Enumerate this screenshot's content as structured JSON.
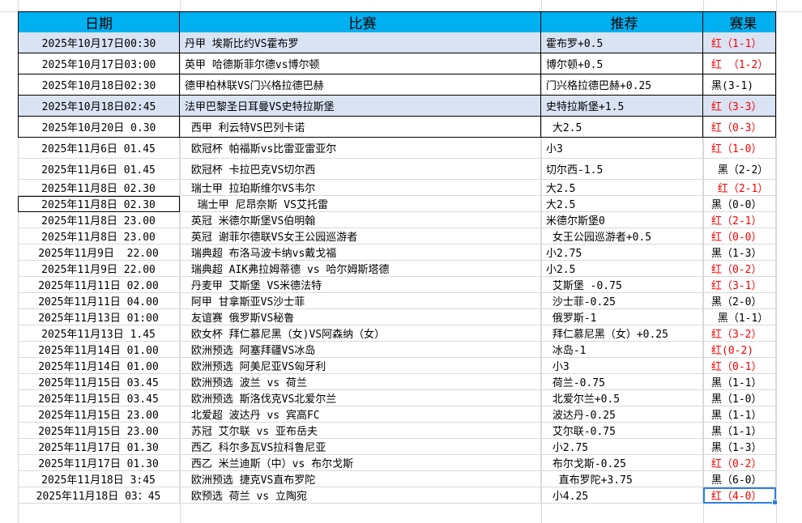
{
  "header": {
    "date": "日期",
    "match": "比赛",
    "pick": "推荐",
    "result": "赛果"
  },
  "colors": {
    "header_bg": "#00b0f0",
    "shaded_row": "#dae3f3",
    "win_text": "#ff0000"
  },
  "rows": [
    {
      "date": "2025年10月17日00:30",
      "match": "丹甲 埃斯比约VS霍布罗",
      "pick": "霍布罗+0.5",
      "result": "红（1-1）",
      "win": true,
      "shaded": true
    },
    {
      "date": "2025年10月17日03:00",
      "match": "英甲 哈德斯菲尔德vs博尔顿",
      "pick": "博尔顿+0.5",
      "result": "红 （1-2）",
      "win": true
    },
    {
      "date": "2025年10月18日02:30",
      "match": "德甲柏林联VS门兴格拉德巴赫",
      "pick": "门兴格拉德巴赫+0.25",
      "result": "黑(3-1)",
      "win": false
    },
    {
      "date": "2025年10月18日02:45",
      "match": "法甲巴黎圣日耳曼VS史特拉斯堡",
      "pick": "史特拉斯堡+1.5",
      "result": "红（3-3）",
      "win": true,
      "shaded": true
    },
    {
      "date": "2025年10月20日 0.30",
      "match": " 西甲 利云特VS巴列卡诺",
      "pick": " 大2.5",
      "result": "红（0-3）",
      "win": true
    },
    {
      "date": "2025年11月6日 01.45",
      "match": " 欧冠杯 帕福斯vs比雷亚雷亚尔",
      "pick": "小3",
      "result": "红（1-0）",
      "win": true
    },
    {
      "date": "2025年11月6日 01.45",
      "match": " 欧冠杯 卡拉巴克VS切尔西",
      "pick": "切尔西-1.5",
      "result": " 黑（2-2）",
      "win": false
    },
    {
      "date": "2025年11月8日 02.30",
      "match": " 瑞士甲 拉珀斯维尔VS韦尔",
      "pick": "大2.5",
      "result": " 红（2-1）",
      "win": true
    },
    {
      "date": "2025年11月8日 02.30",
      "match": "  瑞士甲 尼昂奈斯 VS艾托雷",
      "pick": "大2.5",
      "result": "黑（0-0）",
      "win": false,
      "boxed": true
    },
    {
      "date": "2025年11月8日 23.00",
      "match": " 英冠 米德尔斯堡VS伯明翰",
      "pick": "米德尔斯堡0",
      "result": "红（2-1）",
      "win": true
    },
    {
      "date": "2025年11月8日 23.00",
      "match": " 英冠 谢菲尔德联VS女王公园巡游者",
      "pick": " 女王公园巡游者+0.5",
      "result": "红（0-0）",
      "win": true
    },
    {
      "date": "2025年11月9日  22.00",
      "match": " 瑞典超 布洛马波卡纳vs戴戈福",
      "pick": "小2.75",
      "result": "黑（1-3）",
      "win": false
    },
    {
      "date": "2025年11月9日 22.00",
      "match": " 瑞典超 AIK弗拉姆蒂德 vs 哈尔姆斯塔德",
      "pick": "小2.5",
      "result": "红（0-2）",
      "win": true
    },
    {
      "date": "2025年11月11日 02.00",
      "match": " 丹麦甲 艾斯堡 VS米德法特",
      "pick": " 艾斯堡 -0.75",
      "result": "红（3-1）",
      "win": true
    },
    {
      "date": "2025年11月11日 04.00",
      "match": " 阿甲 甘拿斯亚VS沙士菲",
      "pick": " 沙士菲-0.25",
      "result": "黑（2-0）",
      "win": false
    },
    {
      "date": "2025年11月13日 01:00",
      "match": " 友谊赛 俄罗斯VS秘鲁",
      "pick": " 俄罗斯-1",
      "result": " 黑（1-1）",
      "win": false
    },
    {
      "date": "2025年11月13日 1.45",
      "match": " 欧女杯 拜仁慕尼黑（女)VS阿森纳（女）",
      "pick": " 拜仁慕尼黑（女）+0.25",
      "result": "红（3-2）",
      "win": true
    },
    {
      "date": "2025年11月14日 01.00",
      "match": " 欧洲预选 阿塞拜疆VS冰岛",
      "pick": " 冰岛-1",
      "result": "红(0-2)",
      "win": true
    },
    {
      "date": "2025年11月14日 01.00",
      "match": " 欧洲预选 阿美尼亚VS匈牙利",
      "pick": " 小3",
      "result": "红（0-1）",
      "win": true
    },
    {
      "date": "2025年11月15日 03.45",
      "match": " 欧洲预选 波兰 vs 荷兰",
      "pick": " 荷兰-0.75",
      "result": "黑（1-1）",
      "win": false
    },
    {
      "date": "2025年11月15日 03.45",
      "match": " 欧洲预选 斯洛伐克VS北爱尔兰",
      "pick": " 北爱尔兰+0.5",
      "result": "黑（1-0）",
      "win": false
    },
    {
      "date": "2025年11月15日 23.00",
      "match": " 北爱超 波达丹 vs 宾高FC",
      "pick": " 波达丹-0.25",
      "result": "黑（1-1）",
      "win": false
    },
    {
      "date": "2025年11月15日 23.00",
      "match": " 苏冠 艾尔联 vs 亚布岳夫",
      "pick": " 艾尔联-0.75",
      "result": "黑（1-1）",
      "win": false
    },
    {
      "date": "2025年11月17日 01.30",
      "match": " 西乙 科尔多瓦VS拉科鲁尼亚",
      "pick": " 小2.75",
      "result": "黑（1-3）",
      "win": false
    },
    {
      "date": "2025年11月17日 01.30",
      "match": " 西乙 米兰迪斯（中）vs 布尔戈斯",
      "pick": " 布尔戈斯-0.25",
      "result": "红（0-2）",
      "win": true
    },
    {
      "date": "2025年11月18日 3:45",
      "match": " 欧洲预选 捷克VS直布罗陀",
      "pick": "  直布罗陀+3.75",
      "result": "黑（6-0）",
      "win": false
    },
    {
      "date": "2025年11月18日 03：45",
      "match": " 欧预选 荷兰 vs 立陶宛",
      "pick": " 小4.25",
      "result": "红（4-0）",
      "win": true,
      "selected": true
    }
  ]
}
